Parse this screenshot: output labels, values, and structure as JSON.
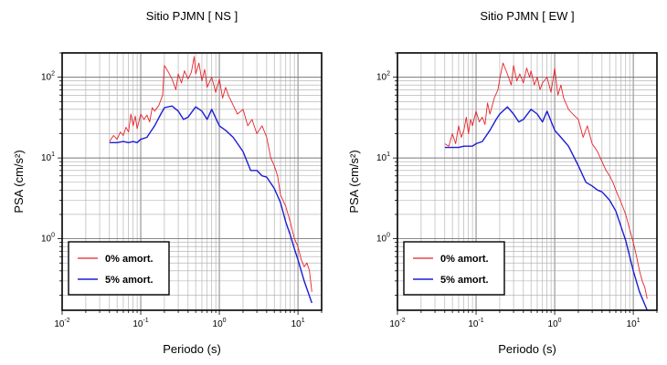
{
  "chart_data": [
    {
      "type": "line",
      "title": "Sitio PJMN [ NS ]",
      "xlabel": "Periodo (s)",
      "ylabel": "PSA (cm/s²)",
      "x_scale": "log",
      "y_scale": "log",
      "xlim": [
        0.01,
        20
      ],
      "ylim": [
        0.13,
        200
      ],
      "x_ticks": [
        {
          "base": "10",
          "exp": "-2",
          "value": 0.01
        },
        {
          "base": "10",
          "exp": "-1",
          "value": 0.1
        },
        {
          "base": "10",
          "exp": "0",
          "value": 1
        },
        {
          "base": "10",
          "exp": "1",
          "value": 10
        }
      ],
      "y_ticks": [
        {
          "base": "10",
          "exp": "0",
          "value": 1
        },
        {
          "base": "10",
          "exp": "1",
          "value": 10
        },
        {
          "base": "10",
          "exp": "2",
          "value": 100
        }
      ],
      "grid": true,
      "legend": "bottom-left",
      "series": [
        {
          "name": "0% amort.",
          "color": "#e8232a",
          "x": [
            0.04,
            0.045,
            0.05,
            0.055,
            0.06,
            0.065,
            0.07,
            0.075,
            0.08,
            0.085,
            0.09,
            0.1,
            0.11,
            0.12,
            0.13,
            0.14,
            0.15,
            0.17,
            0.19,
            0.2,
            0.22,
            0.25,
            0.28,
            0.3,
            0.33,
            0.36,
            0.4,
            0.44,
            0.48,
            0.5,
            0.55,
            0.6,
            0.65,
            0.7,
            0.8,
            0.9,
            1.0,
            1.1,
            1.2,
            1.3,
            1.5,
            1.7,
            2.0,
            2.3,
            2.6,
            3.0,
            3.5,
            4.0,
            4.5,
            5.0,
            5.5,
            6.0,
            7.0,
            8.0,
            9.0,
            10.0,
            11.0,
            12.0,
            13.0,
            14.0,
            15.0
          ],
          "y": [
            16,
            19,
            17,
            21,
            19,
            24,
            21,
            35,
            25,
            33,
            23,
            35,
            30,
            34,
            28,
            42,
            38,
            45,
            60,
            140,
            120,
            95,
            70,
            110,
            85,
            120,
            95,
            115,
            180,
            110,
            150,
            90,
            125,
            75,
            100,
            65,
            95,
            55,
            75,
            60,
            45,
            35,
            40,
            25,
            30,
            20,
            25,
            18,
            10,
            8,
            6,
            3.5,
            2.5,
            1.6,
            1.0,
            0.8,
            0.55,
            0.45,
            0.5,
            0.4,
            0.22
          ]
        },
        {
          "name": "5% amort.",
          "color": "#1c1cd6",
          "x": [
            0.04,
            0.05,
            0.06,
            0.07,
            0.08,
            0.09,
            0.1,
            0.12,
            0.15,
            0.18,
            0.2,
            0.25,
            0.3,
            0.35,
            0.4,
            0.5,
            0.6,
            0.7,
            0.8,
            1.0,
            1.2,
            1.5,
            2.0,
            2.5,
            3.0,
            3.5,
            4.0,
            5.0,
            6.0,
            7.0,
            8.0,
            9.0,
            10.0,
            12.0,
            15.0
          ],
          "y": [
            15.5,
            15.5,
            16,
            15.5,
            16,
            15.5,
            17,
            18,
            25,
            35,
            42,
            44,
            38,
            30,
            32,
            43,
            38,
            30,
            40,
            25,
            22,
            18,
            12,
            7,
            7,
            6,
            5.8,
            4.2,
            2.8,
            1.6,
            1.1,
            0.75,
            0.55,
            0.3,
            0.16
          ]
        }
      ]
    },
    {
      "type": "line",
      "title": "Sitio PJMN [ EW ]",
      "xlabel": "Periodo (s)",
      "ylabel": "PSA (cm/s²)",
      "x_scale": "log",
      "y_scale": "log",
      "xlim": [
        0.01,
        20
      ],
      "ylim": [
        0.13,
        200
      ],
      "x_ticks": [
        {
          "base": "10",
          "exp": "-2",
          "value": 0.01
        },
        {
          "base": "10",
          "exp": "-1",
          "value": 0.1
        },
        {
          "base": "10",
          "exp": "0",
          "value": 1
        },
        {
          "base": "10",
          "exp": "1",
          "value": 10
        }
      ],
      "y_ticks": [
        {
          "base": "10",
          "exp": "0",
          "value": 1
        },
        {
          "base": "10",
          "exp": "1",
          "value": 10
        },
        {
          "base": "10",
          "exp": "2",
          "value": 100
        }
      ],
      "grid": true,
      "legend": "bottom-left",
      "series": [
        {
          "name": "0% amort.",
          "color": "#e8232a",
          "x": [
            0.04,
            0.045,
            0.05,
            0.055,
            0.06,
            0.065,
            0.07,
            0.075,
            0.08,
            0.085,
            0.09,
            0.1,
            0.11,
            0.12,
            0.13,
            0.14,
            0.15,
            0.17,
            0.19,
            0.2,
            0.22,
            0.25,
            0.28,
            0.3,
            0.33,
            0.36,
            0.4,
            0.44,
            0.48,
            0.5,
            0.55,
            0.6,
            0.65,
            0.7,
            0.8,
            0.9,
            1.0,
            1.1,
            1.2,
            1.3,
            1.5,
            1.7,
            2.0,
            2.3,
            2.6,
            3.0,
            3.5,
            4.0,
            4.5,
            5.0,
            5.5,
            6.0,
            7.0,
            8.0,
            9.0,
            10.0,
            11.0,
            12.0,
            13.0,
            14.0,
            15.0
          ],
          "y": [
            15,
            14,
            20,
            15,
            25,
            18,
            22,
            32,
            20,
            30,
            25,
            38,
            28,
            32,
            26,
            48,
            35,
            55,
            70,
            95,
            150,
            110,
            80,
            140,
            90,
            110,
            85,
            130,
            100,
            120,
            80,
            100,
            70,
            85,
            100,
            65,
            130,
            60,
            80,
            55,
            40,
            35,
            30,
            18,
            25,
            15,
            12,
            9,
            7,
            6,
            5,
            4,
            2.8,
            2.0,
            1.3,
            0.9,
            0.6,
            0.4,
            0.3,
            0.25,
            0.18
          ]
        },
        {
          "name": "5% amort.",
          "color": "#1c1cd6",
          "x": [
            0.04,
            0.05,
            0.06,
            0.07,
            0.08,
            0.09,
            0.1,
            0.12,
            0.15,
            0.18,
            0.2,
            0.25,
            0.3,
            0.35,
            0.4,
            0.5,
            0.6,
            0.7,
            0.8,
            1.0,
            1.2,
            1.5,
            2.0,
            2.5,
            3.0,
            3.5,
            4.0,
            5.0,
            6.0,
            7.0,
            8.0,
            9.0,
            10.0,
            12.0,
            15.0
          ],
          "y": [
            13.5,
            13.5,
            13.5,
            14,
            14,
            14,
            15,
            16,
            22,
            30,
            35,
            43,
            35,
            28,
            30,
            40,
            35,
            28,
            38,
            22,
            18,
            14,
            8,
            5,
            4.5,
            4,
            3.8,
            3.0,
            2.2,
            1.4,
            0.95,
            0.6,
            0.4,
            0.22,
            0.13
          ]
        }
      ]
    }
  ]
}
